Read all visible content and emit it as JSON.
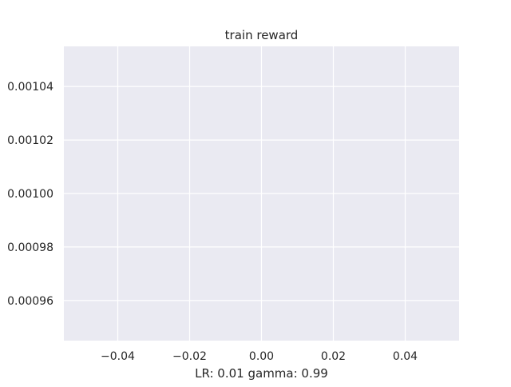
{
  "chart_data": {
    "type": "line",
    "title": "train reward",
    "xlabel": "LR: 0.01 gamma: 0.99",
    "ylabel": "",
    "xlim": [
      -0.055,
      0.055
    ],
    "ylim": [
      0.000945,
      0.001055
    ],
    "x_ticks": [
      -0.04,
      -0.02,
      0.0,
      0.02,
      0.04
    ],
    "x_tick_labels": [
      "−0.04",
      "−0.02",
      "0.00",
      "0.02",
      "0.04"
    ],
    "y_ticks": [
      0.00096,
      0.00098,
      0.001,
      0.00102,
      0.00104
    ],
    "y_tick_labels": [
      "0.00096",
      "0.00098",
      "0.00100",
      "0.00102",
      "0.00104"
    ],
    "grid": true,
    "series": [
      {
        "x": [],
        "y": []
      }
    ],
    "colors": {
      "plot_background": "#eaeaf2",
      "grid": "#ffffff",
      "text": "#262626"
    }
  }
}
